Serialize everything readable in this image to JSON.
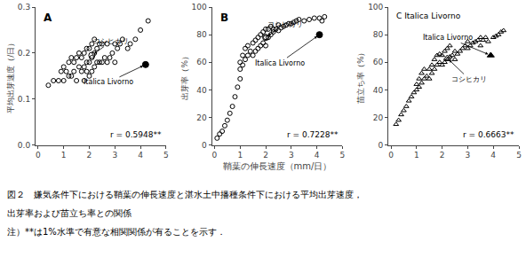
{
  "chart_data": [
    {
      "type": "scatter",
      "title": "A",
      "ylabel": "平均出芽速度（/日）",
      "xlim": [
        -0.1,
        5
      ],
      "xticks": [
        0,
        1,
        2,
        3,
        4,
        5
      ],
      "ylim": [
        0.0,
        0.3
      ],
      "yticks": [
        {
          "value": 0.0,
          "label": "0.0"
        },
        0.1,
        0.2,
        0.3
      ],
      "grid": false,
      "series": [
        {
          "marker": "circle-open",
          "color": "#000000",
          "x": [
            0.4,
            0.6,
            0.8,
            0.9,
            1.0,
            1.0,
            1.1,
            1.2,
            1.2,
            1.3,
            1.3,
            1.4,
            1.4,
            1.5,
            1.5,
            1.6,
            1.6,
            1.7,
            1.7,
            1.8,
            1.8,
            1.8,
            1.9,
            1.9,
            1.9,
            2.0,
            2.0,
            2.0,
            2.1,
            2.1,
            2.1,
            2.2,
            2.2,
            2.2,
            2.3,
            2.3,
            2.4,
            2.4,
            2.5,
            2.5,
            2.6,
            2.7,
            2.7,
            2.8,
            2.9,
            3.0,
            3.0,
            3.1,
            3.2,
            3.3,
            3.5,
            3.6,
            3.8,
            4.0,
            4.3
          ],
          "values": [
            0.13,
            0.14,
            0.14,
            0.16,
            0.14,
            0.17,
            0.16,
            0.15,
            0.18,
            0.15,
            0.19,
            0.16,
            0.18,
            0.14,
            0.19,
            0.17,
            0.2,
            0.16,
            0.19,
            0.14,
            0.17,
            0.2,
            0.16,
            0.18,
            0.21,
            0.15,
            0.18,
            0.21,
            0.16,
            0.19,
            0.22,
            0.17,
            0.2,
            0.23,
            0.18,
            0.21,
            0.18,
            0.22,
            0.18,
            0.22,
            0.19,
            0.18,
            0.22,
            0.19,
            0.2,
            0.18,
            0.22,
            0.21,
            0.22,
            0.23,
            0.21,
            0.22,
            0.23,
            0.25,
            0.27
          ]
        },
        {
          "marker": "circle-open",
          "color": "#000000",
          "x": [
            2.1
          ],
          "values": [
            0.195
          ]
        },
        {
          "marker": "circle",
          "color": "#000000",
          "x": [
            4.2
          ],
          "values": [
            0.175
          ]
        }
      ],
      "annotations": [
        {
          "text": "コシヒカリ",
          "x": 2.1,
          "y": 0.195
        },
        {
          "text": "Italica Livorno",
          "x": 4.2,
          "y": 0.175
        },
        {
          "text": "r = 0.5948**"
        }
      ]
    },
    {
      "type": "scatter",
      "title": "B",
      "ylabel": "出芽率（%）",
      "xlabel": "鞘葉の伸長速度（mm/日）",
      "xlim": [
        -0.1,
        5
      ],
      "xticks": [
        0,
        1,
        2,
        3,
        4,
        5
      ],
      "ylim": [
        0,
        100
      ],
      "yticks": [
        0,
        20,
        40,
        60,
        80,
        100
      ],
      "grid": false,
      "series": [
        {
          "marker": "circle-open",
          "color": "#000000",
          "x": [
            0.1,
            0.2,
            0.3,
            0.4,
            0.5,
            0.6,
            0.7,
            0.8,
            0.9,
            1.0,
            1.0,
            1.0,
            1.1,
            1.1,
            1.2,
            1.2,
            1.3,
            1.3,
            1.4,
            1.5,
            1.5,
            1.6,
            1.6,
            1.7,
            1.7,
            1.8,
            1.8,
            1.9,
            1.9,
            2.0,
            2.0,
            2.0,
            2.1,
            2.1,
            2.2,
            2.2,
            2.3,
            2.3,
            2.4,
            2.5,
            2.5,
            2.6,
            2.7,
            2.8,
            2.9,
            3.0,
            3.1,
            3.2,
            3.3,
            3.5,
            3.7,
            3.9,
            4.1,
            4.2,
            4.3
          ],
          "values": [
            5,
            8,
            10,
            14,
            18,
            23,
            28,
            35,
            42,
            48,
            55,
            60,
            58,
            65,
            62,
            70,
            65,
            72,
            68,
            65,
            74,
            68,
            76,
            70,
            78,
            72,
            80,
            74,
            82,
            72,
            78,
            84,
            78,
            84,
            80,
            86,
            82,
            84,
            84,
            83,
            87,
            85,
            86,
            87,
            88,
            88,
            89,
            90,
            91,
            90,
            91,
            92,
            92,
            90,
            93
          ]
        },
        {
          "marker": "circle-open",
          "color": "#000000",
          "x": [
            2.0
          ],
          "values": [
            78
          ]
        },
        {
          "marker": "circle",
          "color": "#000000",
          "x": [
            4.1
          ],
          "values": [
            80
          ]
        }
      ],
      "annotations": [
        {
          "text": "コシヒカリ",
          "x": 2.0,
          "y": 78
        },
        {
          "text": "Italica Livorno",
          "x": 4.1,
          "y": 80
        },
        {
          "text": "r = 0.7228**"
        }
      ]
    },
    {
      "type": "scatter",
      "title": "C Italica Livorno",
      "ylabel": "苗立ち率（%）",
      "xlim": [
        -0.1,
        5
      ],
      "xticks": [
        0,
        1,
        2,
        3,
        4,
        5
      ],
      "ylim": [
        0,
        100
      ],
      "yticks": [
        0,
        20,
        40,
        60,
        80,
        100
      ],
      "grid": false,
      "series": [
        {
          "marker": "triangle-up-open",
          "color": "#000000",
          "x": [
            0.2,
            0.3,
            0.4,
            0.5,
            0.6,
            0.7,
            0.8,
            0.9,
            1.0,
            1.0,
            1.1,
            1.1,
            1.2,
            1.2,
            1.3,
            1.3,
            1.4,
            1.5,
            1.5,
            1.6,
            1.6,
            1.7,
            1.7,
            1.8,
            1.8,
            1.9,
            1.9,
            2.0,
            2.0,
            2.1,
            2.1,
            2.2,
            2.2,
            2.3,
            2.3,
            2.4,
            2.5,
            2.5,
            2.6,
            2.7,
            2.8,
            2.9,
            3.0,
            3.0,
            3.1,
            3.2,
            3.3,
            3.4,
            3.5,
            3.5,
            3.6,
            3.7,
            3.8,
            4.0,
            4.1,
            4.2,
            4.3,
            4.4
          ],
          "values": [
            15,
            18,
            22,
            25,
            28,
            32,
            35,
            38,
            40,
            44,
            42,
            48,
            45,
            52,
            48,
            55,
            50,
            48,
            55,
            52,
            58,
            55,
            62,
            58,
            65,
            60,
            66,
            58,
            65,
            60,
            68,
            62,
            70,
            64,
            72,
            65,
            62,
            68,
            66,
            68,
            70,
            72,
            70,
            75,
            72,
            74,
            75,
            76,
            72,
            78,
            76,
            78,
            75,
            78,
            79,
            80,
            82,
            83
          ]
        },
        {
          "marker": "triangle-up-open",
          "color": "#000000",
          "x": [
            2.2
          ],
          "values": [
            63
          ]
        },
        {
          "marker": "triangle-up",
          "color": "#000000",
          "x": [
            3.9
          ],
          "values": [
            65
          ]
        }
      ],
      "annotations": [
        {
          "text": "Italica Livorno",
          "x": 3.9,
          "y": 65
        },
        {
          "text": "コシヒカリ",
          "x": 2.2,
          "y": 63
        },
        {
          "text": "r = 0.6663**"
        }
      ]
    }
  ],
  "caption": [
    "図２　嫌気条件下における鞘葉の伸長速度と湛水土中播種条件下における平均出芽速度，",
    "出芽率および苗立ち率との関係",
    "注）**は1%水準で有意な相関関係が有ることを示す．"
  ]
}
